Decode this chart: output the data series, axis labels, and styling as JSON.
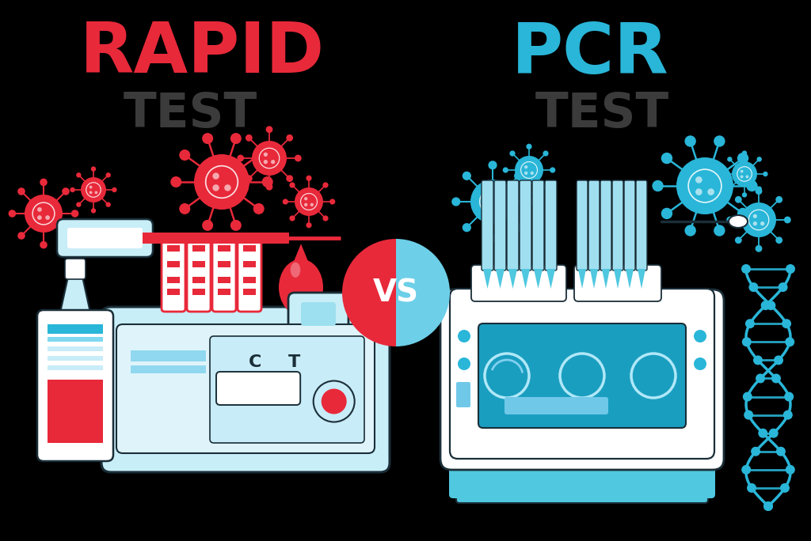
{
  "background_color": "#000000",
  "rapid_title": "RAPID",
  "rapid_subtitle": "TEST",
  "pcr_title": "PCR",
  "pcr_subtitle": "TEST",
  "vs_text": "VS",
  "rapid_title_color": "#e8293a",
  "pcr_title_color": "#29b6d8",
  "subtitle_color": "#555555",
  "vs_left_color": "#e8293a",
  "vs_right_color": "#6dcfe8",
  "vs_text_color": "#ffffff",
  "light_blue": "#c8eef8",
  "mid_blue": "#4fc8e0",
  "dark_line": "#1a2e38",
  "white": "#ffffff",
  "red": "#e8293a",
  "cyan": "#29b6d8"
}
